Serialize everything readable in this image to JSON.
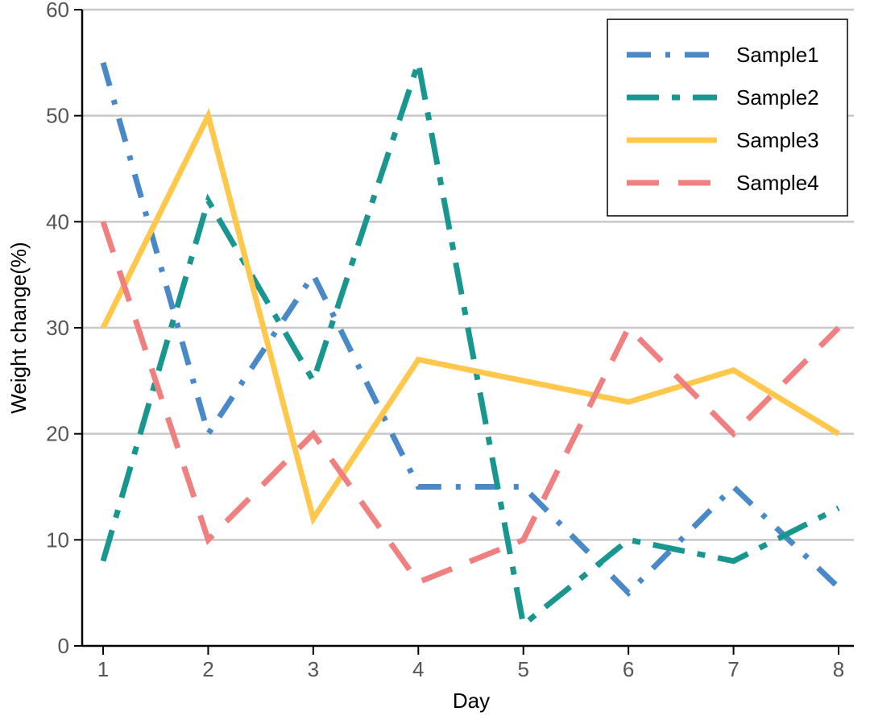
{
  "chart_data": {
    "type": "line",
    "xlabel": "Day",
    "ylabel": "Weight change(%)",
    "x": [
      1,
      2,
      3,
      4,
      5,
      6,
      7,
      8
    ],
    "xlim": [
      1,
      8
    ],
    "ylim": [
      0,
      60
    ],
    "x_ticks": [
      "1",
      "2",
      "3",
      "4",
      "5",
      "6",
      "7",
      "8"
    ],
    "y_ticks": [
      "0",
      "10",
      "20",
      "30",
      "40",
      "50",
      "60"
    ],
    "grid": "horizontal",
    "legend_position": "top-right",
    "series": [
      {
        "name": "Sample1",
        "values": [
          55,
          20,
          35,
          15,
          15,
          5,
          15,
          5.5
        ],
        "color": "#4A89C8",
        "dash": "dash-dot"
      },
      {
        "name": "Sample2",
        "values": [
          8,
          42,
          25,
          55,
          2,
          10,
          8,
          13
        ],
        "color": "#1A9690",
        "dash": "long-dash-dot"
      },
      {
        "name": "Sample3",
        "values": [
          30,
          50,
          12,
          27,
          25,
          23,
          26,
          20
        ],
        "color": "#FFC84D",
        "dash": "solid"
      },
      {
        "name": "Sample4",
        "values": [
          40,
          10,
          20,
          6,
          10,
          30,
          20,
          30
        ],
        "color": "#F08080",
        "dash": "dashed"
      }
    ]
  }
}
